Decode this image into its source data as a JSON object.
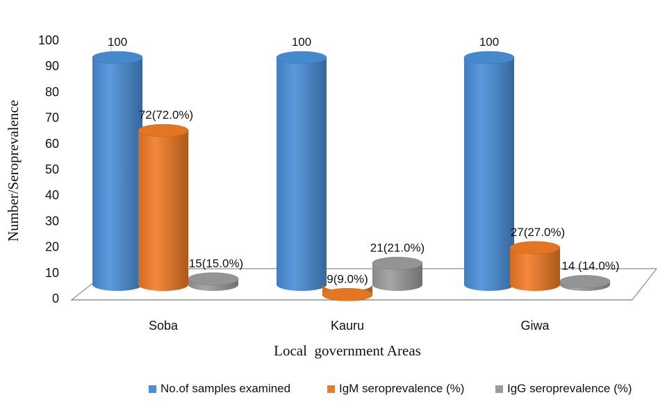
{
  "chart_data": {
    "type": "bar",
    "ylabel": "Number/Seroprevalence",
    "xlabel": "Local  government Areas",
    "ylim": [
      0,
      100
    ],
    "yticks": [
      0,
      10,
      20,
      30,
      40,
      50,
      60,
      70,
      80,
      90,
      100
    ],
    "grid": false,
    "legend_position": "bottom",
    "categories": [
      "Soba",
      "Kauru",
      "Giwa"
    ],
    "series": [
      {
        "name": "No.of samples examined",
        "color": "#4a8fd9",
        "values": [
          100,
          100,
          100
        ],
        "labels": [
          "100",
          "100",
          "100"
        ]
      },
      {
        "name": "IgM seroprevalence (%)",
        "color": "#f07b24",
        "values": [
          72,
          9,
          27
        ],
        "labels": [
          "72(72.0%)",
          "9(9.0%)",
          "27(27.0%)"
        ]
      },
      {
        "name": "IgG seroprevalence (%)",
        "color": "#9c9c9c",
        "values": [
          15,
          21,
          14
        ],
        "labels": [
          "15(15.0%)",
          "21(21.0%)",
          "14 (14.0%)"
        ]
      }
    ]
  }
}
